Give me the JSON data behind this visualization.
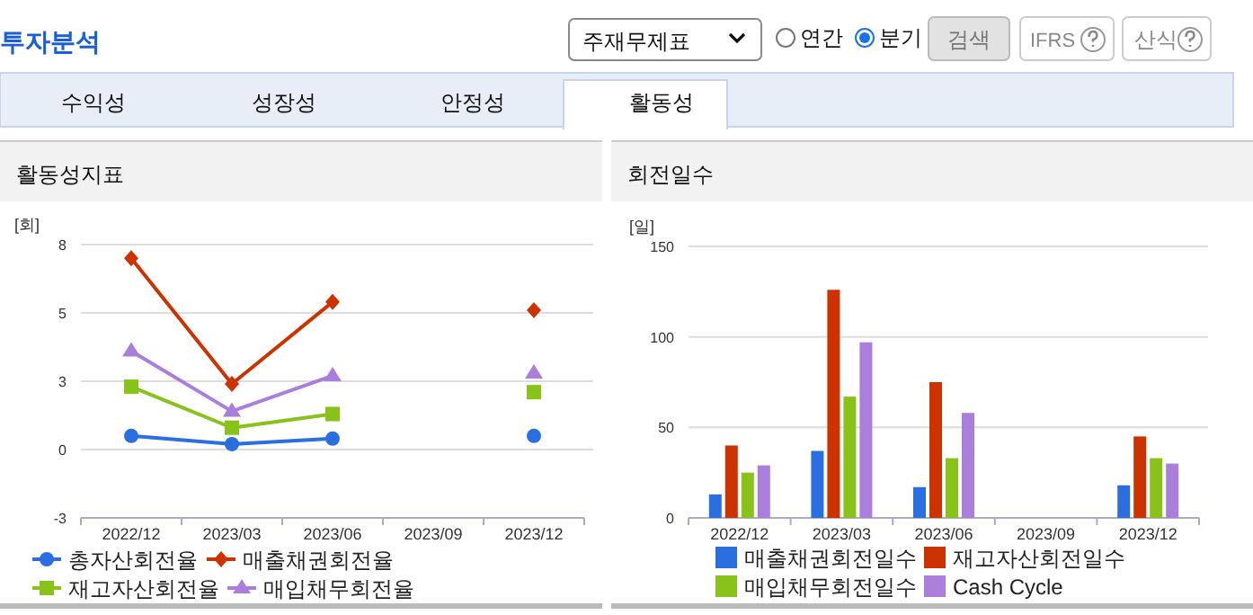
{
  "chart_data": [
    {
      "type": "other",
      "title": "투자분석",
      "annotations": [
        "주재무제표",
        "연간",
        "분기",
        "검색",
        "IFRS",
        "산식",
        "수익성",
        "성장성",
        "안정성",
        "활동성"
      ]
    },
    {
      "type": "line",
      "title": "활동성지표",
      "ylabel": "[회]",
      "categories": [
        "2022/12",
        "2023/03",
        "2023/06",
        "2023/09",
        "2023/12"
      ],
      "ylim": [
        -2.5,
        7.5
      ],
      "yticks": [
        {
          "value": 7.5,
          "label": "8"
        },
        5,
        {
          "value": 2.5,
          "label": "3"
        },
        0,
        {
          "value": -2.5,
          "label": "-3"
        }
      ],
      "grid": "y",
      "legend": "bottom",
      "series": [
        {
          "name": "총자산회전율",
          "color": "#2a6ee0",
          "marker": "circle",
          "values": [
            0.5,
            0.2,
            0.4,
            null,
            0.5
          ]
        },
        {
          "name": "매출채권회전율",
          "color": "#cc3300",
          "marker": "diamond",
          "values": [
            7.0,
            2.4,
            5.4,
            null,
            5.1
          ]
        },
        {
          "name": "재고자산회전율",
          "color": "#88c21a",
          "marker": "square",
          "values": [
            2.3,
            0.8,
            1.3,
            null,
            2.1
          ]
        },
        {
          "name": "매입채무회전율",
          "color": "#a97fdb",
          "marker": "triangle",
          "values": [
            3.6,
            1.4,
            2.7,
            null,
            2.8
          ]
        }
      ]
    },
    {
      "type": "bar",
      "title": "회전일수",
      "ylabel": "[일]",
      "categories": [
        "2022/12",
        "2023/03",
        "2023/06",
        "2023/09",
        "2023/12"
      ],
      "ylim": [
        0,
        150
      ],
      "yticks": [
        0,
        50,
        100,
        150
      ],
      "grid": "y",
      "legend": "bottom",
      "series": [
        {
          "name": "매출채권회전일수",
          "color": "#2a6ee0",
          "values": [
            13,
            37,
            17,
            null,
            18
          ]
        },
        {
          "name": "재고자산회전일수",
          "color": "#cc3300",
          "values": [
            40,
            126,
            75,
            null,
            45
          ]
        },
        {
          "name": "매입채무회전일수",
          "color": "#88c21a",
          "values": [
            25,
            67,
            33,
            null,
            33
          ]
        },
        {
          "name": "Cash Cycle",
          "color": "#a97fdb",
          "values": [
            29,
            97,
            58,
            null,
            30
          ]
        }
      ]
    }
  ]
}
